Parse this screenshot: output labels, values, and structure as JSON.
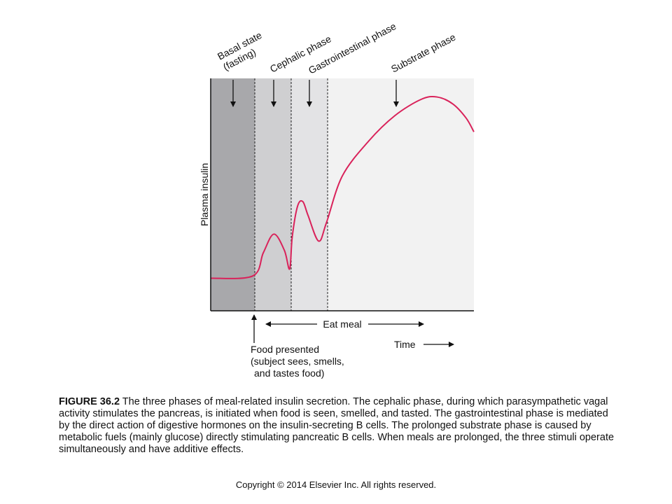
{
  "chart_data": {
    "type": "line",
    "title": "",
    "xlabel": "Time",
    "ylabel": "Plasma insulin",
    "phases": [
      {
        "name": "Basal state (fasting)",
        "lines": [
          "Basal state",
          "(fasting)"
        ],
        "color": "#a8a8ab"
      },
      {
        "name": "Cephalic phase",
        "lines": [
          "Cephalic phase"
        ],
        "color": "#cfcfd1"
      },
      {
        "name": "Gastrointestinal phase",
        "lines": [
          "Gastrointestinal phase"
        ],
        "color": "#e3e3e5"
      },
      {
        "name": "Substrate phase",
        "lines": [
          "Substrate phase"
        ],
        "color": "#f2f2f2"
      }
    ],
    "series": [
      {
        "color": "#d9225a",
        "x": [
          0,
          0.16,
          0.2,
          0.24,
          0.28,
          0.3,
          0.31,
          0.33,
          0.35,
          0.37,
          0.41,
          0.44,
          0.5,
          0.6,
          0.7,
          0.8,
          0.86,
          0.92,
          0.97,
          1.0
        ],
        "y": [
          0.14,
          0.15,
          0.25,
          0.33,
          0.26,
          0.18,
          0.32,
          0.45,
          0.47,
          0.41,
          0.3,
          0.38,
          0.58,
          0.73,
          0.84,
          0.91,
          0.92,
          0.89,
          0.83,
          0.77
        ]
      }
    ],
    "annotations": {
      "food_presented": [
        "Food presented",
        "(subject sees, smells,",
        "and tastes food)"
      ],
      "eat_meal": "Eat meal",
      "time": "Time"
    },
    "grid": false
  },
  "caption": {
    "label": "FIGURE 36.2",
    "text": " The three phases of meal-related insulin secretion. The cephalic phase, during which parasympathetic vagal activity stimulates the pancreas, is initiated when food is seen, smelled, and tasted. The gastrointestinal phase is mediated by the direct action of digestive hormones on the insulin-secreting B cells. The prolonged substrate phase is caused by metabolic fuels (mainly glucose) directly stimulating pancreatic B cells. When meals are prolonged, the three stimuli operate simultaneously and have additive effects."
  },
  "copyright": "Copyright © 2014 Elsevier Inc. All rights reserved."
}
